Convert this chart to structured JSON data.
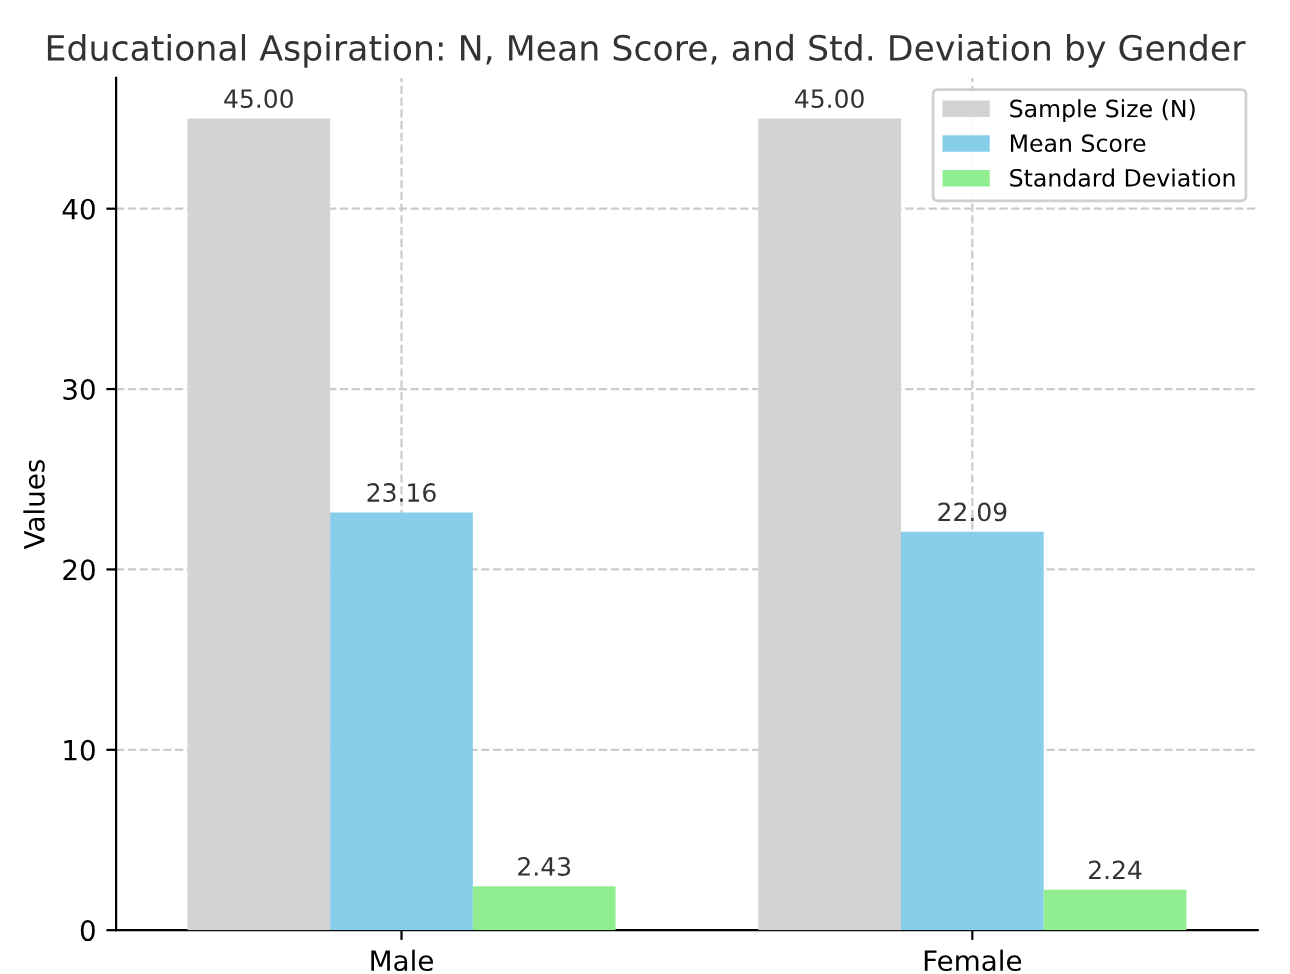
{
  "chart_data": {
    "type": "bar",
    "title": "Educational Aspiration: N, Mean Score, and Std. Deviation by Gender",
    "ylabel": "Values",
    "categories": [
      "Male",
      "Female"
    ],
    "series": [
      {
        "name": "Sample Size (N)",
        "color": "#d3d3d3",
        "values": [
          45.0,
          45.0
        ],
        "value_labels": [
          "45.00",
          "45.00"
        ]
      },
      {
        "name": "Mean Score",
        "color": "#87ceeb",
        "values": [
          23.16,
          22.09
        ],
        "value_labels": [
          "23.16",
          "22.09"
        ]
      },
      {
        "name": "Standard Deviation",
        "color": "#90ee90",
        "values": [
          2.43,
          2.24
        ],
        "value_labels": [
          "2.43",
          "2.24"
        ]
      }
    ],
    "ylim": [
      0,
      47.25
    ],
    "yticks": [
      0,
      10,
      20,
      30,
      40
    ],
    "grid": true,
    "legend": "top right"
  }
}
